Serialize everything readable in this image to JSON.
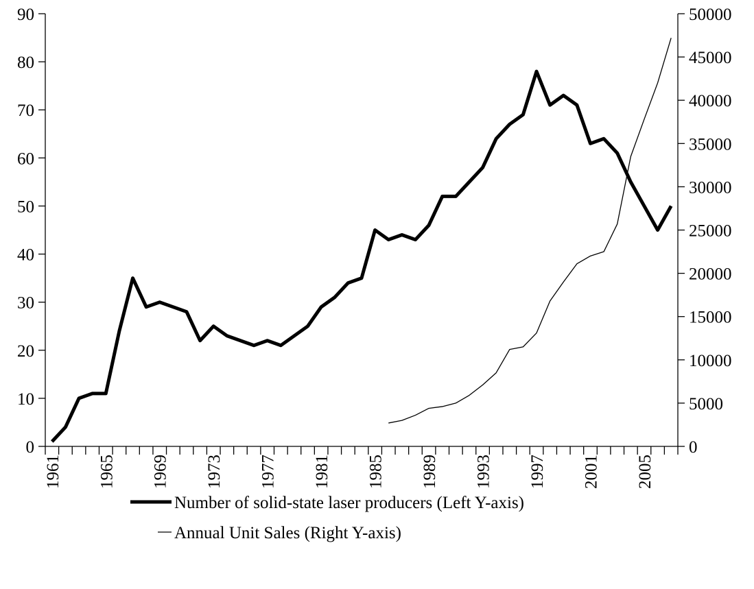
{
  "chart_data": {
    "type": "line",
    "x": [
      1961,
      1962,
      1963,
      1964,
      1965,
      1966,
      1967,
      1968,
      1969,
      1970,
      1971,
      1972,
      1973,
      1974,
      1975,
      1976,
      1977,
      1978,
      1979,
      1980,
      1981,
      1982,
      1983,
      1984,
      1985,
      1986,
      1987,
      1988,
      1989,
      1990,
      1991,
      1992,
      1993,
      1994,
      1995,
      1996,
      1997,
      1998,
      1999,
      2000,
      2001,
      2002,
      2003,
      2004,
      2005,
      2006,
      2007
    ],
    "xlim": [
      1960.5,
      2007.5
    ],
    "xticks": [
      1961,
      1965,
      1969,
      1973,
      1977,
      1981,
      1985,
      1989,
      1993,
      1997,
      2001,
      2005
    ],
    "ylim": [
      0,
      90
    ],
    "yticks": [
      0,
      10,
      20,
      30,
      40,
      50,
      60,
      70,
      80,
      90
    ],
    "y2lim": [
      0,
      50000
    ],
    "y2ticks": [
      0,
      5000,
      10000,
      15000,
      20000,
      25000,
      30000,
      35000,
      40000,
      45000,
      50000
    ],
    "series": [
      {
        "name": "Number of solid-state laser producers (Left Y-axis)",
        "color": "#000000",
        "width": 5,
        "values": [
          1,
          4,
          10,
          11,
          11,
          24,
          35,
          29,
          30,
          29,
          28,
          22,
          25,
          23,
          22,
          21,
          22,
          21,
          23,
          25,
          29,
          31,
          34,
          35,
          45,
          43,
          44,
          43,
          46,
          52,
          52,
          55,
          58,
          64,
          67,
          69,
          78,
          71,
          73,
          71,
          63,
          64,
          61,
          55,
          50,
          45,
          50
        ]
      },
      {
        "name": "Annual Unit Sales (Right Y-axis)",
        "color": "#000000",
        "width": 1.3,
        "axis": "y2",
        "values": [
          null,
          null,
          null,
          null,
          null,
          null,
          null,
          null,
          null,
          null,
          null,
          null,
          null,
          null,
          null,
          null,
          null,
          null,
          null,
          null,
          null,
          null,
          null,
          null,
          null,
          2700,
          3000,
          3600,
          4400,
          4600,
          5000,
          5900,
          7100,
          8500,
          11200,
          11500,
          13100,
          16800,
          19000,
          21100,
          22000,
          22500,
          25700,
          33500,
          37800,
          42000,
          47200
        ]
      }
    ]
  }
}
